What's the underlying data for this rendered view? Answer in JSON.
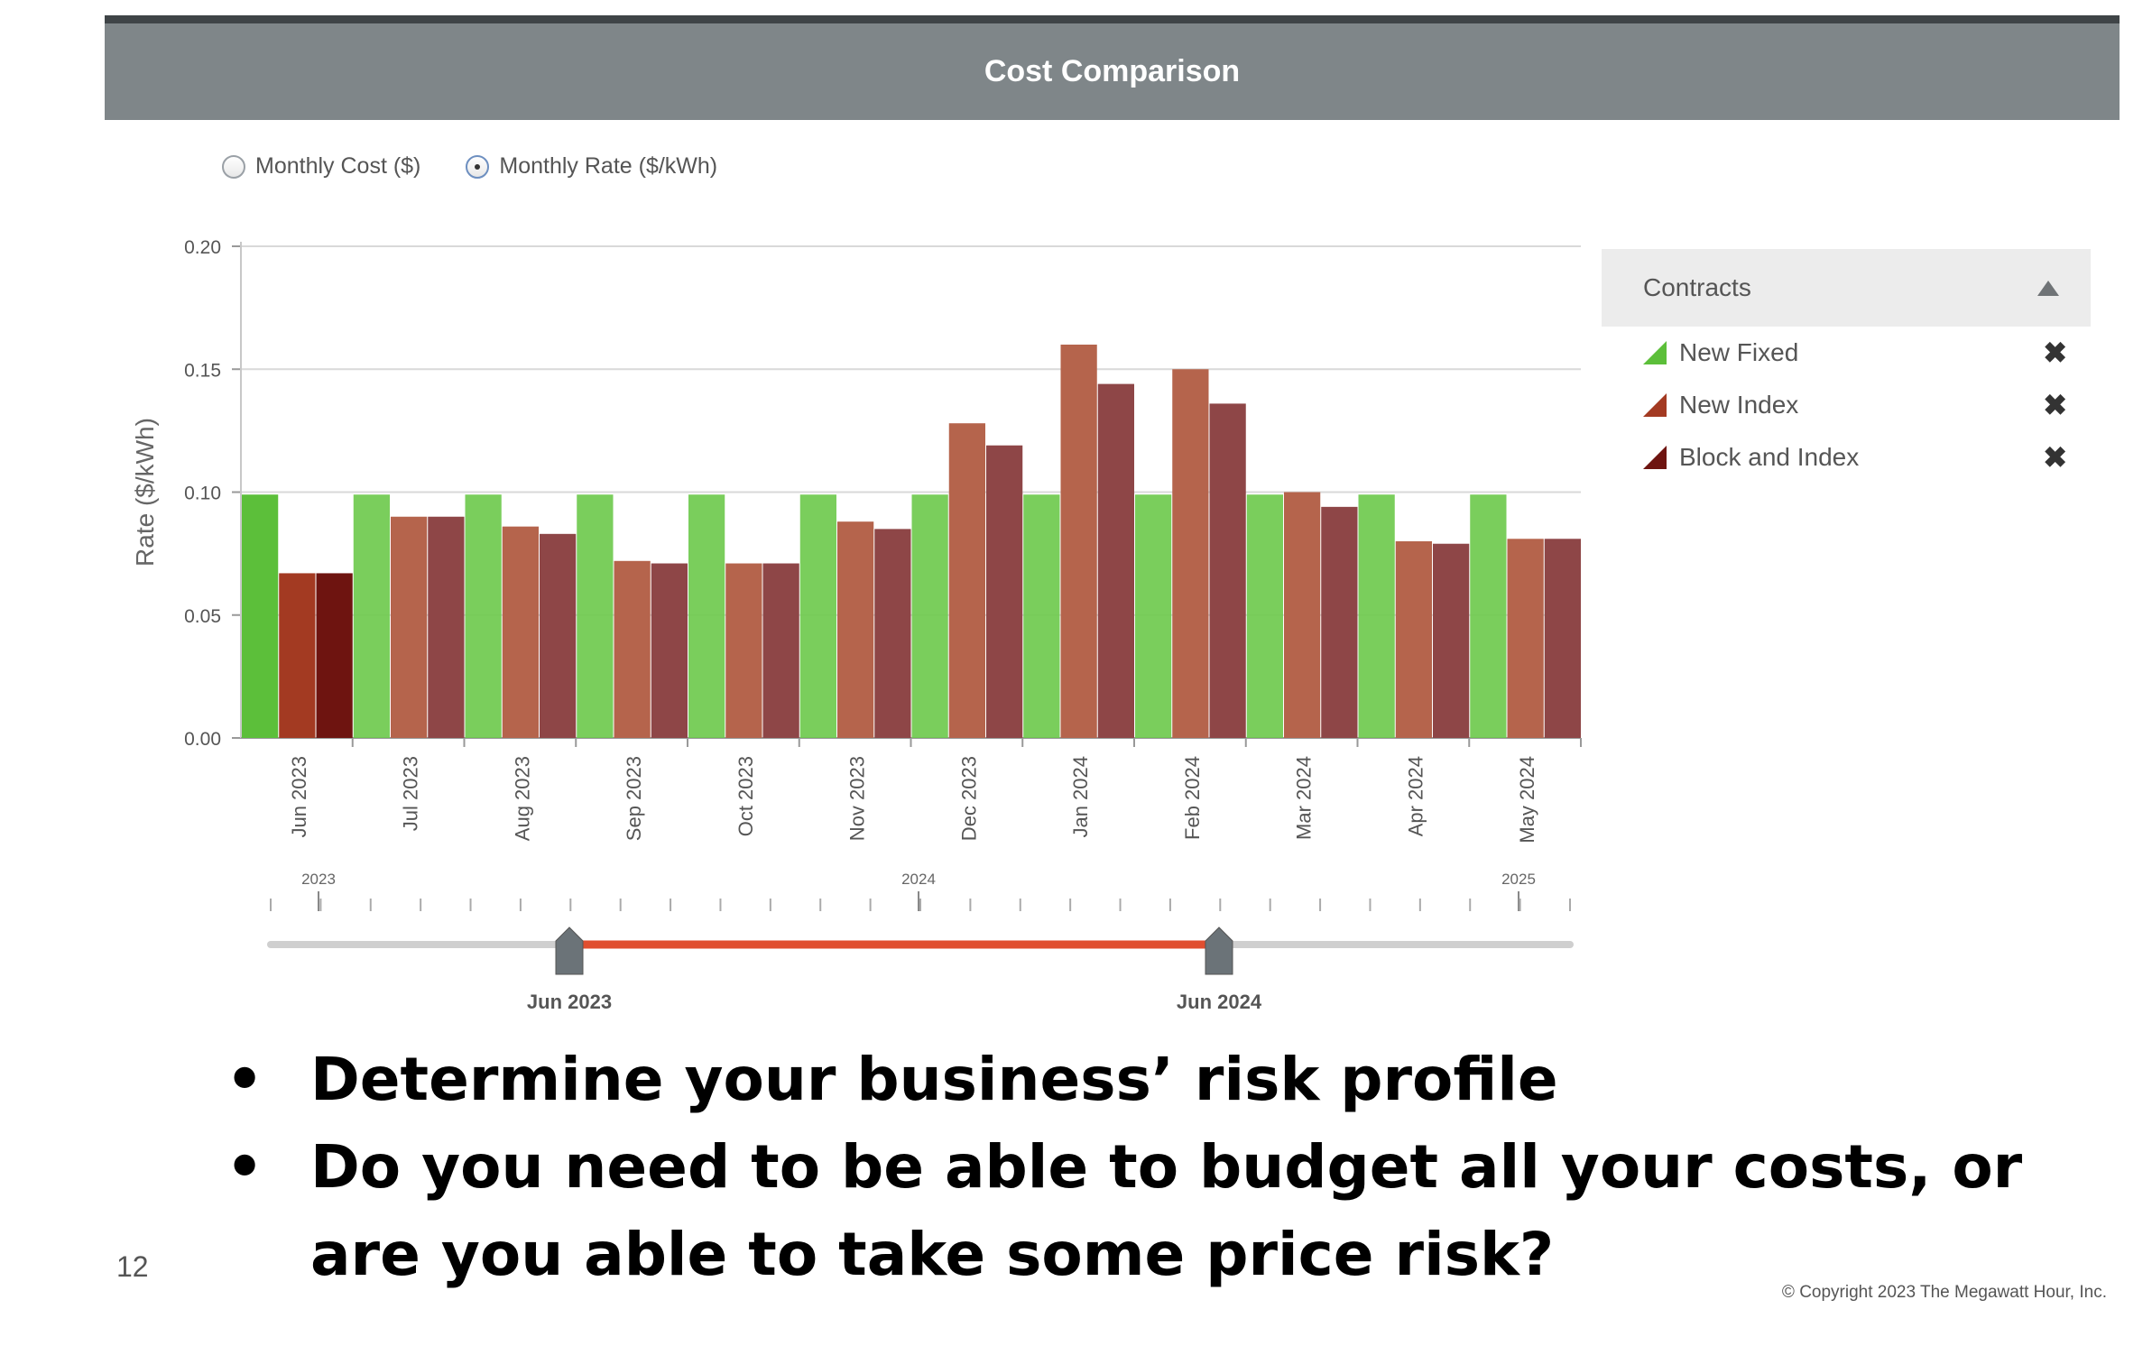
{
  "header": {
    "title": "Cost Comparison"
  },
  "radio": [
    {
      "label": "Monthly Cost ($)",
      "selected": false
    },
    {
      "label": "Monthly Rate ($/kWh)",
      "selected": true
    }
  ],
  "legend": {
    "title": "Contracts",
    "items": [
      {
        "label": "New Fixed",
        "color": "#5cbf3a"
      },
      {
        "label": "New Index",
        "color": "#a33a22"
      },
      {
        "label": "Block and Index",
        "color": "#6e1410"
      }
    ]
  },
  "chart_data": {
    "type": "bar",
    "ylabel": "Rate ($/kWh)",
    "ylim": [
      0,
      0.2
    ],
    "yticks": [
      "0.00",
      "0.05",
      "0.10",
      "0.15",
      "0.20"
    ],
    "grid": true,
    "categories": [
      "Jun 2023",
      "Jul 2023",
      "Aug 2023",
      "Sep 2023",
      "Oct 2023",
      "Nov 2023",
      "Dec 2023",
      "Jan 2024",
      "Feb 2024",
      "Mar 2024",
      "Apr 2024",
      "May 2024"
    ],
    "series": [
      {
        "name": "New Fixed",
        "color": "#5cbf3a",
        "values": [
          0.099,
          0.099,
          0.099,
          0.099,
          0.099,
          0.099,
          0.099,
          0.099,
          0.099,
          0.099,
          0.099,
          0.099
        ]
      },
      {
        "name": "New Index",
        "color": "#a33a22",
        "values": [
          0.067,
          0.09,
          0.086,
          0.072,
          0.071,
          0.088,
          0.128,
          0.16,
          0.15,
          0.1,
          0.08,
          0.081
        ]
      },
      {
        "name": "Block and Index",
        "color": "#6e1410",
        "values": [
          0.067,
          0.09,
          0.083,
          0.071,
          0.071,
          0.085,
          0.119,
          0.144,
          0.136,
          0.094,
          0.079,
          0.081
        ]
      }
    ],
    "highlight_color": "#e04e2f",
    "navigator": {
      "year_labels": [
        "2023",
        "2024",
        "2025"
      ],
      "range_start": "Jun 2023",
      "range_end": "Jun 2024"
    }
  },
  "bullets": [
    "Determine your business’ risk profile",
    "Do you need to be able to budget all your costs, or are you able to take some price risk?"
  ],
  "footer": {
    "page_number": "12",
    "copyright": "© Copyright 2023 The Megawatt Hour, Inc."
  }
}
